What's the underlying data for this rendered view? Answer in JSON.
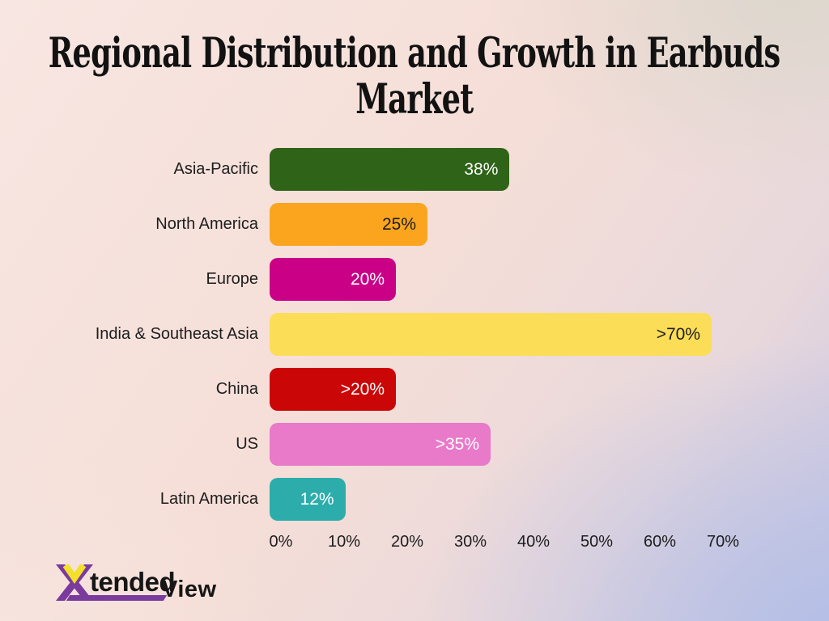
{
  "page": {
    "title_line1": "Regional Distribution and Growth in Earbuds",
    "title_line2": "Market"
  },
  "chart_data": {
    "type": "bar",
    "orientation": "horizontal",
    "title": "Regional Distribution and Growth in Earbuds Market",
    "categories": [
      "Asia-Pacific",
      "North America",
      "Europe",
      "India & Southeast Asia",
      "China",
      "US",
      "Latin America"
    ],
    "values": [
      38,
      25,
      20,
      70,
      20,
      35,
      12
    ],
    "value_labels": [
      "38%",
      "25%",
      "20%",
      ">70%",
      ">20%",
      ">35%",
      "12%"
    ],
    "bar_colors": [
      "#2f6418",
      "#fba51f",
      "#ca0087",
      "#fcdd57",
      "#cb0606",
      "#e979c9",
      "#2cadac"
    ],
    "value_label_colors": [
      "#ffffff",
      "#1c1c1c",
      "#ffffff",
      "#1c1c1c",
      "#ffffff",
      "#ffffff",
      "#ffffff"
    ],
    "xlim": [
      0,
      70
    ],
    "x_tick_values": [
      0,
      10,
      20,
      30,
      40,
      50,
      60,
      70
    ],
    "x_tick_labels": [
      "0%",
      "10%",
      "20%",
      "30%",
      "40%",
      "50%",
      "60%",
      "70%"
    ],
    "grid": false,
    "legend": false
  },
  "logo": {
    "text_part1": "tended",
    "text_part2": "View",
    "purple": "#7a3b9d",
    "yellow": "#f3e02a"
  }
}
